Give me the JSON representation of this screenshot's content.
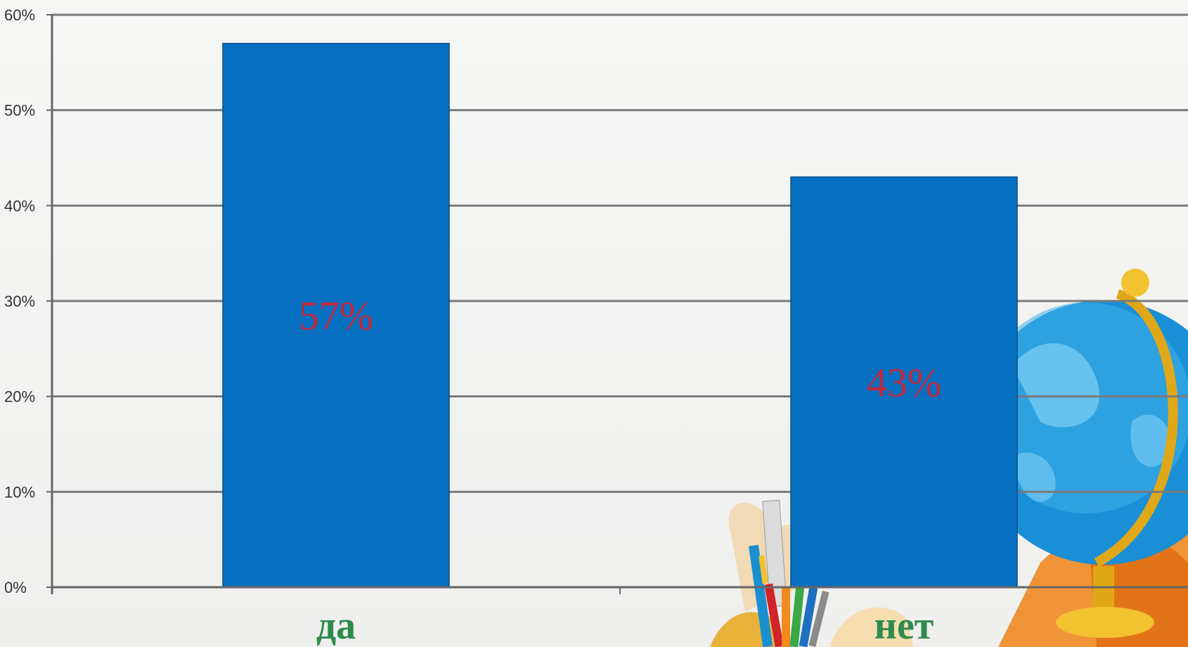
{
  "chart_data": {
    "type": "bar",
    "categories": [
      "да",
      "нет"
    ],
    "values": [
      57,
      43
    ],
    "data_labels": [
      "57%",
      "43%"
    ],
    "y_ticks": [
      "0%",
      "10%",
      "20%",
      "30%",
      "40%",
      "50%",
      "60%"
    ],
    "ylim": [
      0,
      60
    ],
    "grid": true,
    "legend": "none",
    "colors": {
      "bar": "#0570c1",
      "bar_edge": "#0a4e8a",
      "data_label": "#c0263a",
      "category_label": "#2e8b4e",
      "gridline": "#7a7a7a"
    }
  }
}
